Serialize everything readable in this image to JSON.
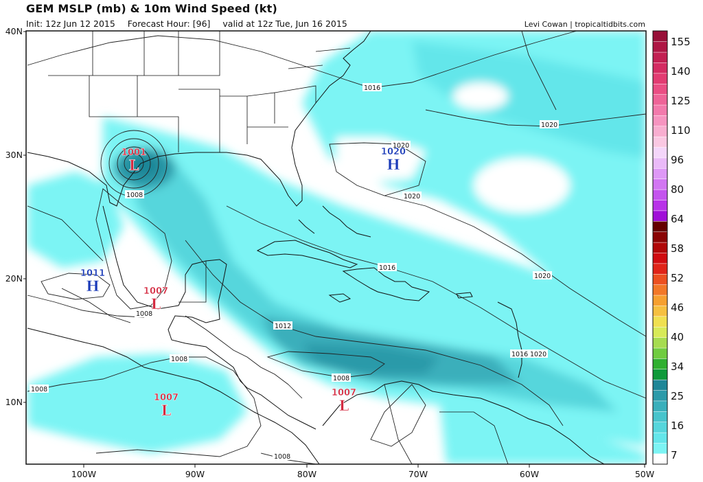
{
  "header": {
    "title": "GEM MSLP (mb) & 10m Wind Speed (kt)",
    "init": "Init: 12z Jun 12 2015",
    "forecast_hour": "Forecast Hour: [96]",
    "valid": "valid at 12z Tue, Jun 16 2015",
    "credit": "Levi Cowan | tropicaltidbits.com"
  },
  "axes": {
    "lat_labels": [
      "40N",
      "30N",
      "20N",
      "10N"
    ],
    "lon_labels": [
      "100W",
      "90W",
      "80W",
      "70W",
      "60W",
      "50W"
    ]
  },
  "colorbar": {
    "labels": [
      "155",
      "140",
      "125",
      "110",
      "96",
      "80",
      "64",
      "58",
      "52",
      "46",
      "40",
      "34",
      "25",
      "16",
      "7"
    ],
    "colors": [
      "#ffffff",
      "#7cf4f4",
      "#64e6ea",
      "#56d6dc",
      "#48c4cc",
      "#3aafbb",
      "#2c9aa9",
      "#1f8697",
      "#0f9a3a",
      "#30b030",
      "#70cc40",
      "#a6dc50",
      "#d8ea58",
      "#f0e050",
      "#f6c040",
      "#f6a030",
      "#f27828",
      "#ec5020",
      "#e02418",
      "#d00c10",
      "#b00808",
      "#8a0404",
      "#640000",
      "#a010d8",
      "#b832e8",
      "#c454ee",
      "#d276f2",
      "#de98f6",
      "#eabaf8",
      "#f4d6fa",
      "#fac8e2",
      "#f8aed0",
      "#f694c0",
      "#f27aac",
      "#ee6498",
      "#ea4e84",
      "#e23c72",
      "#d42c62",
      "#c22052",
      "#ae1644",
      "#981038"
    ]
  },
  "isobar_labels": [
    "1016",
    "1020",
    "1020",
    "1020",
    "1020",
    "1016",
    "1020",
    "1012",
    "1016",
    "1008",
    "1008",
    "1008",
    "1008",
    "1008",
    "1008"
  ],
  "systems": [
    {
      "type": "L",
      "value": "1001"
    },
    {
      "type": "H",
      "value": "1020"
    },
    {
      "type": "H",
      "value": "1011"
    },
    {
      "type": "L",
      "value": "1007"
    },
    {
      "type": "L",
      "value": "1007"
    },
    {
      "type": "L",
      "value": "1007"
    }
  ]
}
